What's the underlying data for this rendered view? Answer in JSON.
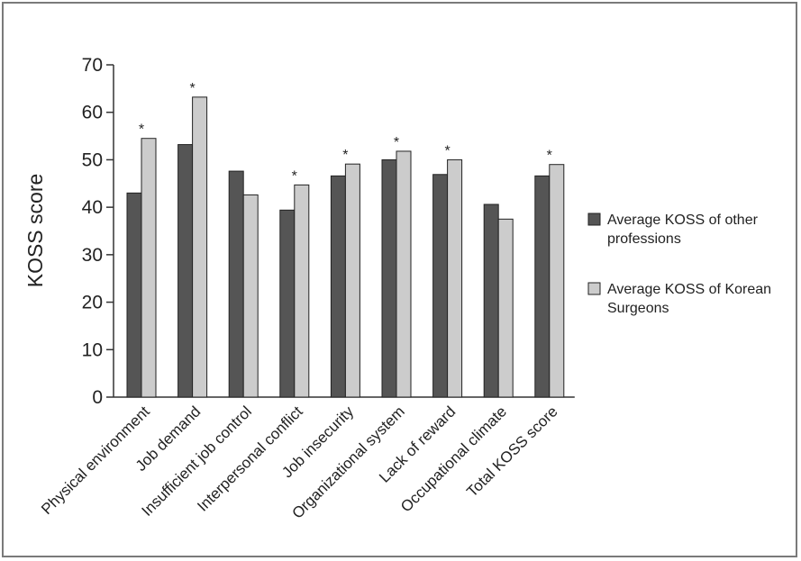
{
  "chart_data": {
    "type": "bar",
    "title": "",
    "xlabel": "",
    "ylabel": "KOSS score",
    "ylim": [
      0,
      70
    ],
    "yticks": [
      0,
      10,
      20,
      30,
      40,
      50,
      60,
      70
    ],
    "categories": [
      "Physical environment",
      "Job demand",
      "Insufficient job control",
      "Interpersonal conflict",
      "Job insecurity",
      "Organizational system",
      "Lack of reward",
      "Occupational climate",
      "Total KOSS score"
    ],
    "series": [
      {
        "name": "Average KOSS of other professions",
        "color": "#555555",
        "values": [
          43.0,
          53.2,
          47.6,
          39.4,
          46.6,
          50.0,
          46.9,
          40.6,
          46.6
        ]
      },
      {
        "name": "Average KOSS of Korean Surgeons",
        "color": "#cccccc",
        "values": [
          54.5,
          63.2,
          42.6,
          44.7,
          49.1,
          51.8,
          50.0,
          37.5,
          49.0
        ]
      }
    ],
    "significance_marker": "*",
    "significant": [
      true,
      true,
      false,
      true,
      true,
      true,
      true,
      false,
      true
    ],
    "legend": {
      "position": "right",
      "entries": [
        {
          "lines": [
            "Average KOSS of other",
            "professions"
          ],
          "color": "#555555"
        },
        {
          "lines": [
            "Average KOSS of Korean",
            "Surgeons"
          ],
          "color": "#cccccc"
        }
      ]
    },
    "grid": false
  }
}
